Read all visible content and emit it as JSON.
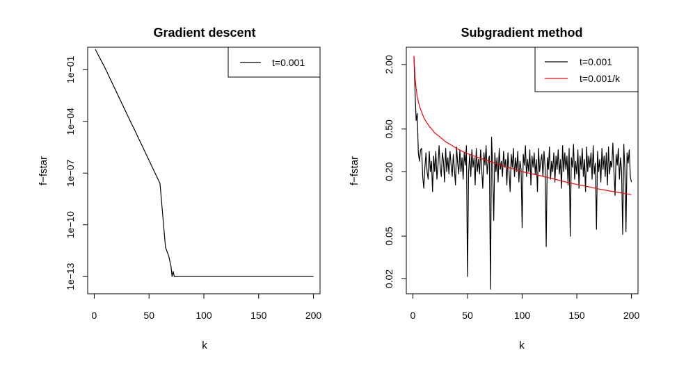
{
  "chart_data": [
    {
      "type": "line",
      "title": "Gradient descent",
      "xlabel": "k",
      "ylabel": "f−fstar",
      "y_scale": "log",
      "xlim": [
        -6,
        206
      ],
      "ylim": [
        1e-14,
        2
      ],
      "xticks": [
        0,
        50,
        100,
        150,
        200
      ],
      "xtick_labels": [
        "0",
        "50",
        "100",
        "150",
        "200"
      ],
      "yticks": [
        1e-13,
        1e-10,
        1e-07,
        0.0001,
        0.1
      ],
      "ytick_labels": [
        "1e−13",
        "1e−10",
        "1e−07",
        "1e−04",
        "1e−01"
      ],
      "grid": false,
      "legend_position": "top-right",
      "series": [
        {
          "name": "t=0.001",
          "color": "#000000",
          "x": [
            1,
            10,
            20,
            30,
            40,
            50,
            60,
            65,
            68,
            70,
            71,
            72,
            73,
            74,
            75,
            76,
            78,
            80,
            85,
            90,
            95,
            100,
            110,
            120,
            130,
            140,
            150,
            160,
            170,
            180,
            190,
            200
          ],
          "y": [
            1.5,
            0.12,
            0.0055,
            0.00025,
            1.2e-05,
            5.5e-07,
            2.5e-08,
            5e-12,
            1.5e-12,
            4e-13,
            1e-13,
            2e-13,
            1e-13,
            1e-13,
            1e-13,
            1e-13,
            1e-13,
            1e-13,
            1e-13,
            1e-13,
            1e-13,
            1e-13,
            1e-13,
            1e-13,
            1e-13,
            1e-13,
            1e-13,
            1e-13,
            1e-13,
            1e-13,
            1e-13,
            1e-13
          ]
        }
      ]
    },
    {
      "type": "line",
      "title": "Subgradient method",
      "xlabel": "k",
      "ylabel": "f−fstar",
      "y_scale": "log",
      "xlim": [
        -6,
        206
      ],
      "ylim": [
        0.0145,
        2.9
      ],
      "xticks": [
        0,
        50,
        100,
        150,
        200
      ],
      "xtick_labels": [
        "0",
        "50",
        "100",
        "150",
        "200"
      ],
      "yticks": [
        0.02,
        0.05,
        0.2,
        0.5,
        2.0
      ],
      "ytick_labels": [
        "0.02",
        "0.05",
        "0.20",
        "0.50",
        "2.00"
      ],
      "grid": false,
      "legend_position": "top-right",
      "series": [
        {
          "name": "t=0.001",
          "color": "#000000",
          "x": [
            1,
            2,
            3,
            4,
            5,
            6,
            7,
            8,
            9,
            10,
            11,
            12,
            13,
            14,
            15,
            16,
            17,
            18,
            19,
            20,
            21,
            22,
            23,
            24,
            25,
            26,
            27,
            28,
            29,
            30,
            31,
            32,
            33,
            34,
            35,
            36,
            37,
            38,
            39,
            40,
            41,
            42,
            43,
            44,
            45,
            46,
            47,
            48,
            49,
            50,
            51,
            52,
            53,
            54,
            55,
            56,
            57,
            58,
            59,
            60,
            61,
            62,
            63,
            64,
            65,
            66,
            67,
            68,
            69,
            70,
            71,
            72,
            73,
            74,
            75,
            76,
            77,
            78,
            79,
            80,
            81,
            82,
            83,
            84,
            85,
            86,
            87,
            88,
            89,
            90,
            91,
            92,
            93,
            94,
            95,
            96,
            97,
            98,
            99,
            100,
            101,
            102,
            103,
            104,
            105,
            106,
            107,
            108,
            109,
            110,
            111,
            112,
            113,
            114,
            115,
            116,
            117,
            118,
            119,
            120,
            121,
            122,
            123,
            124,
            125,
            126,
            127,
            128,
            129,
            130,
            131,
            132,
            133,
            134,
            135,
            136,
            137,
            138,
            139,
            140,
            141,
            142,
            143,
            144,
            145,
            146,
            147,
            148,
            149,
            150,
            151,
            152,
            153,
            154,
            155,
            156,
            157,
            158,
            159,
            160,
            161,
            162,
            163,
            164,
            165,
            166,
            167,
            168,
            169,
            170,
            171,
            172,
            173,
            174,
            175,
            176,
            177,
            178,
            179,
            180,
            181,
            182,
            183,
            184,
            185,
            186,
            187,
            188,
            189,
            190,
            191,
            192,
            193,
            194,
            195,
            196,
            197,
            198,
            199,
            200
          ],
          "y": [
            2.4,
            1.1,
            0.6,
            0.7,
            0.3,
            0.25,
            0.32,
            0.33,
            0.18,
            0.14,
            0.22,
            0.3,
            0.2,
            0.17,
            0.31,
            0.2,
            0.25,
            0.13,
            0.28,
            0.2,
            0.31,
            0.17,
            0.23,
            0.35,
            0.22,
            0.18,
            0.3,
            0.25,
            0.16,
            0.33,
            0.2,
            0.27,
            0.19,
            0.31,
            0.23,
            0.18,
            0.29,
            0.21,
            0.15,
            0.34,
            0.24,
            0.19,
            0.32,
            0.2,
            0.27,
            0.17,
            0.3,
            0.23,
            0.35,
            0.021,
            0.2,
            0.29,
            0.18,
            0.32,
            0.22,
            0.27,
            0.15,
            0.33,
            0.2,
            0.26,
            0.19,
            0.32,
            0.21,
            0.14,
            0.3,
            0.23,
            0.35,
            0.19,
            0.25,
            0.28,
            0.016,
            0.42,
            0.22,
            0.07,
            0.3,
            0.2,
            0.27,
            0.16,
            0.33,
            0.21,
            0.25,
            0.18,
            0.31,
            0.22,
            0.26,
            0.15,
            0.3,
            0.2,
            0.13,
            0.29,
            0.22,
            0.33,
            0.18,
            0.27,
            0.2,
            0.31,
            0.16,
            0.25,
            0.21,
            0.06,
            0.29,
            0.23,
            0.35,
            0.18,
            0.26,
            0.2,
            0.32,
            0.15,
            0.28,
            0.22,
            0.3,
            0.19,
            0.26,
            0.13,
            0.33,
            0.2,
            0.25,
            0.29,
            0.18,
            0.31,
            0.22,
            0.04,
            0.27,
            0.21,
            0.34,
            0.17,
            0.25,
            0.2,
            0.3,
            0.16,
            0.28,
            0.21,
            0.32,
            0.19,
            0.26,
            0.14,
            0.35,
            0.2,
            0.3,
            0.21,
            0.28,
            0.15,
            0.33,
            0.05,
            0.27,
            0.22,
            0.36,
            0.17,
            0.25,
            0.19,
            0.32,
            0.14,
            0.28,
            0.21,
            0.33,
            0.18,
            0.26,
            0.13,
            0.34,
            0.2,
            0.28,
            0.22,
            0.3,
            0.17,
            0.35,
            0.19,
            0.24,
            0.058,
            0.31,
            0.2,
            0.26,
            0.16,
            0.33,
            0.21,
            0.28,
            0.18,
            0.3,
            0.15,
            0.34,
            0.19,
            0.25,
            0.22,
            0.37,
            0.2,
            0.12,
            0.29,
            0.23,
            0.33,
            0.17,
            0.27,
            0.2,
            0.052,
            0.36,
            0.21,
            0.055,
            0.3,
            0.24,
            0.32,
            0.18,
            0.16
          ]
        },
        {
          "name": "t=0.001/k",
          "color": "#ff0000",
          "x": [
            1,
            2,
            3,
            4,
            5,
            6,
            8,
            10,
            12,
            15,
            18,
            20,
            25,
            30,
            35,
            40,
            45,
            50,
            60,
            70,
            80,
            90,
            100,
            110,
            120,
            130,
            140,
            150,
            160,
            170,
            180,
            190,
            200
          ],
          "y": [
            2.4,
            1.5,
            1.2,
            1.0,
            0.9,
            0.82,
            0.72,
            0.64,
            0.59,
            0.53,
            0.49,
            0.46,
            0.42,
            0.38,
            0.355,
            0.33,
            0.31,
            0.295,
            0.27,
            0.25,
            0.23,
            0.215,
            0.2,
            0.19,
            0.18,
            0.17,
            0.16,
            0.152,
            0.145,
            0.138,
            0.132,
            0.127,
            0.122
          ]
        }
      ]
    }
  ]
}
